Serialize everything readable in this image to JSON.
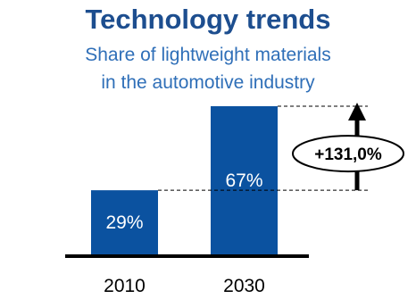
{
  "header": {
    "title": "Technology trends",
    "subtitle_line1": "Share of lightweight materials",
    "subtitle_line2": "in the automotive industry"
  },
  "chart_data": {
    "type": "bar",
    "title": "Technology trends",
    "subtitle": "Share of lightweight materials in the automotive industry",
    "categories": [
      "2010",
      "2030"
    ],
    "values": [
      29,
      67
    ],
    "value_labels": [
      "29%",
      "67%"
    ],
    "annotation": "+131,0%",
    "xlabel": "",
    "ylabel": "",
    "ylim": [
      0,
      67
    ],
    "grid": false,
    "legend": "none"
  },
  "colors": {
    "title": "#1d4e8f",
    "subtitle": "#2f6fb8",
    "bar": "#0b52a0",
    "bar_label": "#ffffff",
    "axis": "#000000",
    "growth_label": "#000000"
  }
}
